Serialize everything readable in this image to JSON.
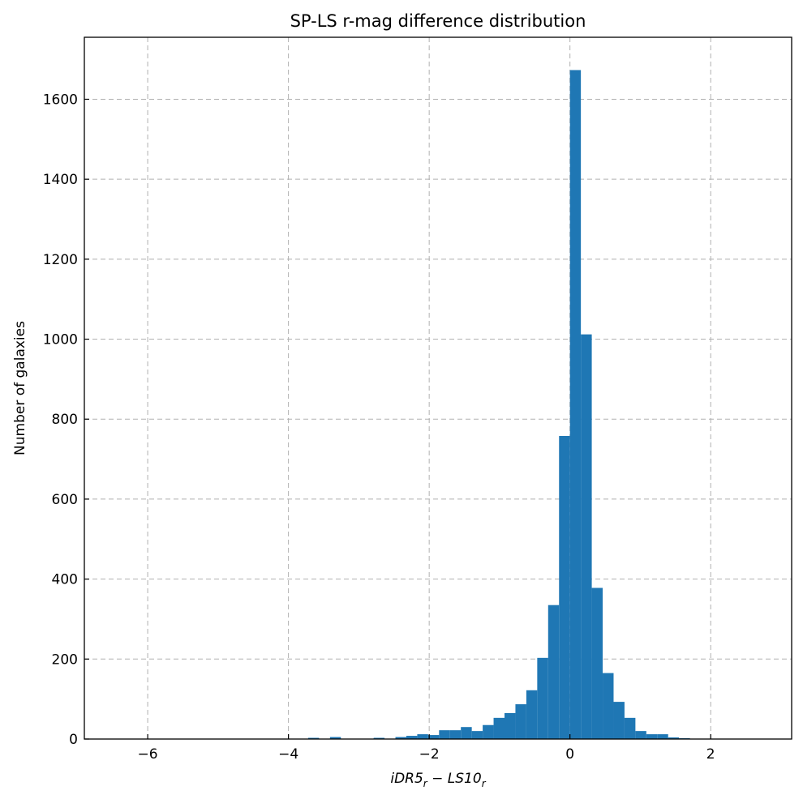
{
  "chart_data": {
    "type": "bar",
    "title": "SP-LS r-mag difference distribution",
    "xlabel": "iDR5_r − LS10_r",
    "xlabel_parts": {
      "main_a": "iDR5",
      "sub_a": "r",
      "operator": " − ",
      "main_b": "LS10",
      "sub_b": "r"
    },
    "ylabel": "Number of galaxies",
    "xlim": [
      -6.9,
      3.15
    ],
    "ylim": [
      0,
      1755
    ],
    "xticks": [
      -6,
      -4,
      -2,
      0,
      2
    ],
    "xtick_labels": [
      "−6",
      "−4",
      "−2",
      "0",
      "2"
    ],
    "yticks": [
      0,
      200,
      400,
      600,
      800,
      1000,
      1200,
      1400,
      1600
    ],
    "ytick_labels": [
      "0",
      "200",
      "400",
      "600",
      "800",
      "1000",
      "1200",
      "1400",
      "1600"
    ],
    "grid": true,
    "bar_color": "#1f77b4",
    "bin_width": 0.155,
    "bins": [
      {
        "x0": -3.72,
        "value": 3
      },
      {
        "x0": -3.41,
        "value": 5
      },
      {
        "x0": -2.79,
        "value": 3
      },
      {
        "x0": -2.48,
        "value": 5
      },
      {
        "x0": -2.325,
        "value": 8
      },
      {
        "x0": -2.17,
        "value": 12
      },
      {
        "x0": -2.015,
        "value": 10
      },
      {
        "x0": -1.86,
        "value": 22
      },
      {
        "x0": -1.705,
        "value": 22
      },
      {
        "x0": -1.55,
        "value": 30
      },
      {
        "x0": -1.395,
        "value": 20
      },
      {
        "x0": -1.24,
        "value": 35
      },
      {
        "x0": -1.085,
        "value": 53
      },
      {
        "x0": -0.93,
        "value": 65
      },
      {
        "x0": -0.775,
        "value": 87
      },
      {
        "x0": -0.62,
        "value": 122
      },
      {
        "x0": -0.465,
        "value": 203
      },
      {
        "x0": -0.31,
        "value": 335
      },
      {
        "x0": -0.155,
        "value": 758
      },
      {
        "x0": 0.0,
        "value": 1673
      },
      {
        "x0": 0.155,
        "value": 1012
      },
      {
        "x0": 0.31,
        "value": 378
      },
      {
        "x0": 0.465,
        "value": 165
      },
      {
        "x0": 0.62,
        "value": 93
      },
      {
        "x0": 0.775,
        "value": 53
      },
      {
        "x0": 0.93,
        "value": 20
      },
      {
        "x0": 1.085,
        "value": 12
      },
      {
        "x0": 1.24,
        "value": 12
      },
      {
        "x0": 1.395,
        "value": 4
      },
      {
        "x0": 1.55,
        "value": 2
      }
    ]
  }
}
